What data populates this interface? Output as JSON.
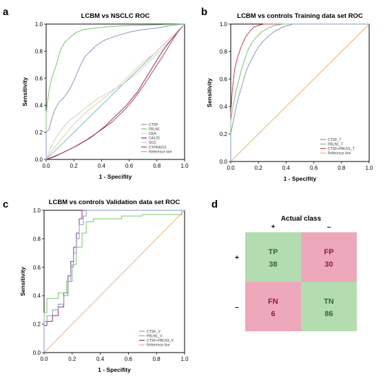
{
  "panel_letters": [
    "a",
    "b",
    "c",
    "d"
  ],
  "colors": {
    "CTSF": "#8a93c8",
    "FBLN1": "#79c472",
    "CEA": "#f1cc91",
    "CA125": "#8b2f78",
    "SCC": "#c9c9d7",
    "CYFRA211": "#c03a5d",
    "Reference": "#6fc0c6",
    "Reference_orange": "#efb07a",
    "TP_TN_bg": "#b3dcb0",
    "FP_FN_bg": "#eda8bb",
    "green_text": "#2e6a31",
    "red_text": "#8e1c3e"
  },
  "chart_data": [
    {
      "panel": "a",
      "type": "line",
      "title": "LCBM vs NSCLC ROC",
      "xlabel": "1 - Specifity",
      "ylabel": "Sensitivity",
      "xlim": [
        0,
        1
      ],
      "ylim": [
        0,
        1
      ],
      "xticks": [
        "0.0",
        "0.2",
        "0.4",
        "0.6",
        "0.8",
        "1.0"
      ],
      "yticks": [
        "0.0",
        "0.2",
        "0.4",
        "0.6",
        "0.8",
        "1.0"
      ],
      "legend": "bottom-right",
      "series": [
        {
          "name": "CTSF",
          "color_key": "CTSF",
          "points": [
            [
              0,
              0
            ],
            [
              0,
              0.2
            ],
            [
              0.02,
              0.22
            ],
            [
              0.04,
              0.3
            ],
            [
              0.06,
              0.36
            ],
            [
              0.09,
              0.42
            ],
            [
              0.13,
              0.46
            ],
            [
              0.17,
              0.52
            ],
            [
              0.2,
              0.58
            ],
            [
              0.22,
              0.63
            ],
            [
              0.25,
              0.7
            ],
            [
              0.28,
              0.76
            ],
            [
              0.32,
              0.8
            ],
            [
              0.36,
              0.84
            ],
            [
              0.42,
              0.88
            ],
            [
              0.5,
              0.91
            ],
            [
              0.6,
              0.94
            ],
            [
              0.7,
              0.96
            ],
            [
              0.8,
              0.97
            ],
            [
              0.9,
              0.99
            ],
            [
              1,
              1
            ]
          ]
        },
        {
          "name": "FBLN1",
          "color_key": "FBLN1",
          "points": [
            [
              0,
              0
            ],
            [
              0,
              0.35
            ],
            [
              0.02,
              0.5
            ],
            [
              0.04,
              0.6
            ],
            [
              0.06,
              0.66
            ],
            [
              0.08,
              0.72
            ],
            [
              0.1,
              0.8
            ],
            [
              0.13,
              0.86
            ],
            [
              0.17,
              0.9
            ],
            [
              0.22,
              0.94
            ],
            [
              0.27,
              0.96
            ],
            [
              0.35,
              0.97
            ],
            [
              0.45,
              0.98
            ],
            [
              0.6,
              0.99
            ],
            [
              1,
              1
            ]
          ]
        },
        {
          "name": "CEA",
          "color_key": "CEA",
          "points": [
            [
              0,
              0
            ],
            [
              0.04,
              0.06
            ],
            [
              0.1,
              0.14
            ],
            [
              0.2,
              0.26
            ],
            [
              0.3,
              0.36
            ],
            [
              0.4,
              0.44
            ],
            [
              0.5,
              0.52
            ],
            [
              0.58,
              0.6
            ],
            [
              0.64,
              0.66
            ],
            [
              0.7,
              0.72
            ],
            [
              0.78,
              0.78
            ],
            [
              0.86,
              0.86
            ],
            [
              0.93,
              0.93
            ],
            [
              1,
              1
            ]
          ]
        },
        {
          "name": "CA125",
          "color_key": "CA125",
          "points": [
            [
              0,
              0
            ],
            [
              0.06,
              0.02
            ],
            [
              0.14,
              0.06
            ],
            [
              0.22,
              0.1
            ],
            [
              0.32,
              0.16
            ],
            [
              0.42,
              0.24
            ],
            [
              0.5,
              0.32
            ],
            [
              0.58,
              0.4
            ],
            [
              0.66,
              0.5
            ],
            [
              0.72,
              0.6
            ],
            [
              0.78,
              0.7
            ],
            [
              0.84,
              0.8
            ],
            [
              0.9,
              0.88
            ],
            [
              0.95,
              0.94
            ],
            [
              1,
              1
            ]
          ]
        },
        {
          "name": "SCC",
          "color_key": "SCC",
          "points": [
            [
              0,
              0
            ],
            [
              0.03,
              0.08
            ],
            [
              0.08,
              0.18
            ],
            [
              0.16,
              0.28
            ],
            [
              0.26,
              0.36
            ],
            [
              0.36,
              0.44
            ],
            [
              0.46,
              0.5
            ],
            [
              0.56,
              0.56
            ],
            [
              0.66,
              0.64
            ],
            [
              0.76,
              0.74
            ],
            [
              0.86,
              0.84
            ],
            [
              0.94,
              0.93
            ],
            [
              1,
              1
            ]
          ]
        },
        {
          "name": "CYFRA211",
          "color_key": "CYFRA211",
          "points": [
            [
              0,
              0
            ],
            [
              0.05,
              0.02
            ],
            [
              0.12,
              0.05
            ],
            [
              0.2,
              0.09
            ],
            [
              0.3,
              0.15
            ],
            [
              0.4,
              0.22
            ],
            [
              0.48,
              0.28
            ],
            [
              0.56,
              0.36
            ],
            [
              0.63,
              0.44
            ],
            [
              0.7,
              0.54
            ],
            [
              0.77,
              0.65
            ],
            [
              0.84,
              0.76
            ],
            [
              0.9,
              0.86
            ],
            [
              0.95,
              0.94
            ],
            [
              1,
              1
            ]
          ]
        },
        {
          "name": "Reference line",
          "color_key": "Reference",
          "points": [
            [
              0,
              0
            ],
            [
              1,
              1
            ]
          ]
        }
      ]
    },
    {
      "panel": "b",
      "type": "line",
      "title": "LCBM vs controls Training data set ROC",
      "xlabel": "1 - Specifity",
      "ylabel": "Sensitivity",
      "xlim": [
        0,
        1
      ],
      "ylim": [
        0,
        1
      ],
      "xticks": [
        "0.0",
        "0.2",
        "0.4",
        "0.6",
        "0.8",
        "1.0"
      ],
      "yticks": [
        "0.0",
        "0.2",
        "0.4",
        "0.6",
        "0.8",
        "1.0"
      ],
      "legend": "bottom-right",
      "series": [
        {
          "name": "CTSF_T",
          "color_key": "CTSF",
          "points": [
            [
              0,
              0
            ],
            [
              0,
              0.2
            ],
            [
              0.02,
              0.3
            ],
            [
              0.04,
              0.4
            ],
            [
              0.06,
              0.48
            ],
            [
              0.08,
              0.55
            ],
            [
              0.1,
              0.62
            ],
            [
              0.12,
              0.68
            ],
            [
              0.15,
              0.74
            ],
            [
              0.18,
              0.8
            ],
            [
              0.22,
              0.86
            ],
            [
              0.27,
              0.91
            ],
            [
              0.32,
              0.95
            ],
            [
              0.38,
              0.98
            ],
            [
              0.45,
              1
            ],
            [
              1,
              1
            ]
          ]
        },
        {
          "name": "FBLN1_T",
          "color_key": "FBLN1",
          "points": [
            [
              0,
              0
            ],
            [
              0,
              0.3
            ],
            [
              0.02,
              0.42
            ],
            [
              0.04,
              0.52
            ],
            [
              0.06,
              0.6
            ],
            [
              0.08,
              0.68
            ],
            [
              0.1,
              0.74
            ],
            [
              0.12,
              0.8
            ],
            [
              0.15,
              0.86
            ],
            [
              0.18,
              0.9
            ],
            [
              0.22,
              0.94
            ],
            [
              0.27,
              0.97
            ],
            [
              0.32,
              0.99
            ],
            [
              0.38,
              1
            ],
            [
              1,
              1
            ]
          ]
        },
        {
          "name": "CTSF+FBLN1_T",
          "color_key": "CYFRA211",
          "points": [
            [
              0,
              0
            ],
            [
              0,
              0.35
            ],
            [
              0.01,
              0.5
            ],
            [
              0.02,
              0.6
            ],
            [
              0.03,
              0.68
            ],
            [
              0.05,
              0.76
            ],
            [
              0.07,
              0.82
            ],
            [
              0.09,
              0.87
            ],
            [
              0.11,
              0.91
            ],
            [
              0.14,
              0.95
            ],
            [
              0.17,
              0.98
            ],
            [
              0.2,
              0.99
            ],
            [
              0.24,
              1
            ],
            [
              1,
              1
            ]
          ]
        },
        {
          "name": "Reference line",
          "color_key": "Reference_orange",
          "points": [
            [
              0,
              0
            ],
            [
              1,
              1
            ]
          ]
        }
      ]
    },
    {
      "panel": "c",
      "type": "line",
      "title": "LCBM vs controls Validation data set ROC",
      "xlabel": "1 - Specifity",
      "ylabel": "Sensitivity",
      "xlim": [
        0,
        1
      ],
      "ylim": [
        0,
        1
      ],
      "xticks": [
        "0.0",
        "0.2",
        "0.4",
        "0.6",
        "0.8",
        "1.0"
      ],
      "yticks": [
        "0.0",
        "0.2",
        "0.4",
        "0.6",
        "0.8",
        "1.0"
      ],
      "legend": "bottom-right",
      "series": [
        {
          "name": "CTSF_V",
          "color_key": "CTSF",
          "points": [
            [
              0,
              0
            ],
            [
              0,
              0.22
            ],
            [
              0.02,
              0.22
            ],
            [
              0.02,
              0.26
            ],
            [
              0.06,
              0.26
            ],
            [
              0.06,
              0.3
            ],
            [
              0.1,
              0.3
            ],
            [
              0.1,
              0.34
            ],
            [
              0.14,
              0.34
            ],
            [
              0.14,
              0.4
            ],
            [
              0.17,
              0.4
            ],
            [
              0.17,
              0.5
            ],
            [
              0.19,
              0.5
            ],
            [
              0.19,
              0.6
            ],
            [
              0.21,
              0.6
            ],
            [
              0.21,
              0.7
            ],
            [
              0.23,
              0.7
            ],
            [
              0.23,
              0.8
            ],
            [
              0.25,
              0.8
            ],
            [
              0.25,
              0.9
            ],
            [
              0.28,
              0.9
            ],
            [
              0.28,
              0.96
            ],
            [
              0.3,
              0.96
            ],
            [
              0.3,
              1
            ],
            [
              1,
              1
            ]
          ]
        },
        {
          "name": "FBLN1_V",
          "color_key": "FBLN1",
          "points": [
            [
              0,
              0
            ],
            [
              0,
              0.28
            ],
            [
              0.02,
              0.28
            ],
            [
              0.02,
              0.38
            ],
            [
              0.06,
              0.38
            ],
            [
              0.1,
              0.38
            ],
            [
              0.1,
              0.42
            ],
            [
              0.16,
              0.42
            ],
            [
              0.16,
              0.5
            ],
            [
              0.2,
              0.5
            ],
            [
              0.2,
              0.62
            ],
            [
              0.23,
              0.62
            ],
            [
              0.23,
              0.74
            ],
            [
              0.27,
              0.74
            ],
            [
              0.27,
              0.84
            ],
            [
              0.3,
              0.84
            ],
            [
              0.3,
              0.92
            ],
            [
              0.35,
              0.92
            ],
            [
              0.35,
              0.94
            ],
            [
              0.55,
              0.94
            ],
            [
              0.55,
              0.96
            ],
            [
              0.7,
              0.96
            ],
            [
              0.7,
              0.97
            ],
            [
              0.98,
              0.97
            ],
            [
              0.98,
              1
            ],
            [
              1,
              1
            ]
          ]
        },
        {
          "name": "CTSF+FBLN1_V",
          "color_key": "CA125",
          "points": [
            [
              0,
              0
            ],
            [
              0,
              0.19
            ],
            [
              0.02,
              0.19
            ],
            [
              0.02,
              0.22
            ],
            [
              0.06,
              0.22
            ],
            [
              0.06,
              0.26
            ],
            [
              0.1,
              0.26
            ],
            [
              0.1,
              0.32
            ],
            [
              0.14,
              0.32
            ],
            [
              0.14,
              0.42
            ],
            [
              0.17,
              0.42
            ],
            [
              0.17,
              0.54
            ],
            [
              0.19,
              0.54
            ],
            [
              0.19,
              0.64
            ],
            [
              0.21,
              0.64
            ],
            [
              0.21,
              0.74
            ],
            [
              0.23,
              0.74
            ],
            [
              0.23,
              0.84
            ],
            [
              0.25,
              0.84
            ],
            [
              0.25,
              0.94
            ],
            [
              0.27,
              0.94
            ],
            [
              0.27,
              1
            ],
            [
              1,
              1
            ]
          ]
        },
        {
          "name": "Reference line",
          "color_key": "Reference_orange",
          "points": [
            [
              0,
              0
            ],
            [
              1,
              1
            ]
          ]
        }
      ]
    },
    {
      "panel": "d",
      "type": "table",
      "title": "Actual class",
      "col_signs": [
        "+",
        "–"
      ],
      "row_signs": [
        "+",
        "–"
      ],
      "cells": [
        [
          {
            "label": "TP",
            "value": "38",
            "tone": "green"
          },
          {
            "label": "FP",
            "value": "30",
            "tone": "red"
          }
        ],
        [
          {
            "label": "FN",
            "value": "6",
            "tone": "red"
          },
          {
            "label": "TN",
            "value": "86",
            "tone": "green"
          }
        ]
      ]
    }
  ]
}
